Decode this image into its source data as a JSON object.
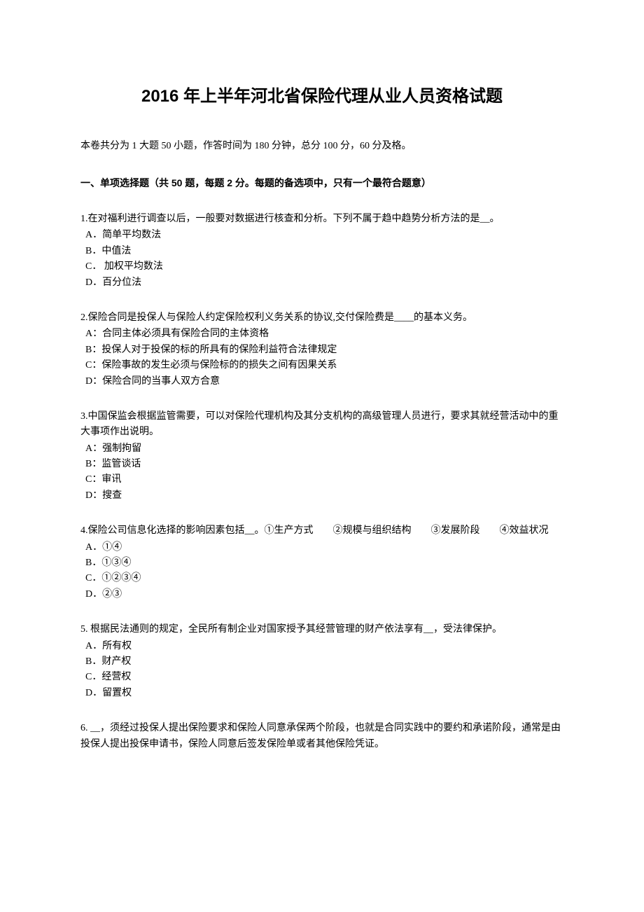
{
  "title": "2016 年上半年河北省保险代理从业人员资格试题",
  "intro": "本卷共分为 1 大题 50 小题，作答时间为 180 分钟，总分 100 分，60 分及格。",
  "section_header": "一、单项选择题（共 50 题，每题 2 分。每题的备选项中，只有一个最符合题意）",
  "questions": [
    {
      "text": "1.在对福利进行调查以后，一般要对数据进行核查和分析。下列不属于趋中趋势分析方法的是__。",
      "options": [
        "A．简单平均数法",
        "B．中值法",
        "C．  加权平均数法",
        "D．百分位法"
      ]
    },
    {
      "text": "2.保险合同是投保人与保险人约定保险权利义务关系的协议,交付保险费是____的基本义务。",
      "options": [
        "A：合同主体必须具有保险合同的主体资格",
        "B：投保人对于投保的标的所具有的保险利益符合法律规定",
        "C：保险事故的发生必须与保险标的的损失之间有因果关系",
        "D：保险合同的当事人双方合意"
      ]
    },
    {
      "text": "3.中国保监会根据监管需要，可以对保险代理机构及其分支机构的高级管理人员进行，要求其就经营活动中的重大事项作出说明。",
      "options": [
        "A：强制拘留",
        "B：监管谈话",
        "C：审讯",
        "D：搜查"
      ]
    },
    {
      "text": "4.保险公司信息化选择的影响因素包括__。①生产方式　　②规模与组织结构　　③发展阶段　　④效益状况",
      "options": [
        "A．①④",
        "B．①③④",
        "C．①②③④",
        "D．②③"
      ]
    },
    {
      "text": "5. 根据民法通则的规定，全民所有制企业对国家授予其经营管理的财产依法享有__，受法律保护。",
      "options": [
        "A．所有权",
        "B．财产权",
        "C．经营权",
        "D．留置权"
      ]
    },
    {
      "text": "6. __，须经过投保人提出保险要求和保险人同意承保两个阶段，也就是合同实践中的要约和承诺阶段，通常是由投保人提出投保申请书，保险人同意后签发保险单或者其他保险凭证。",
      "options": []
    }
  ]
}
